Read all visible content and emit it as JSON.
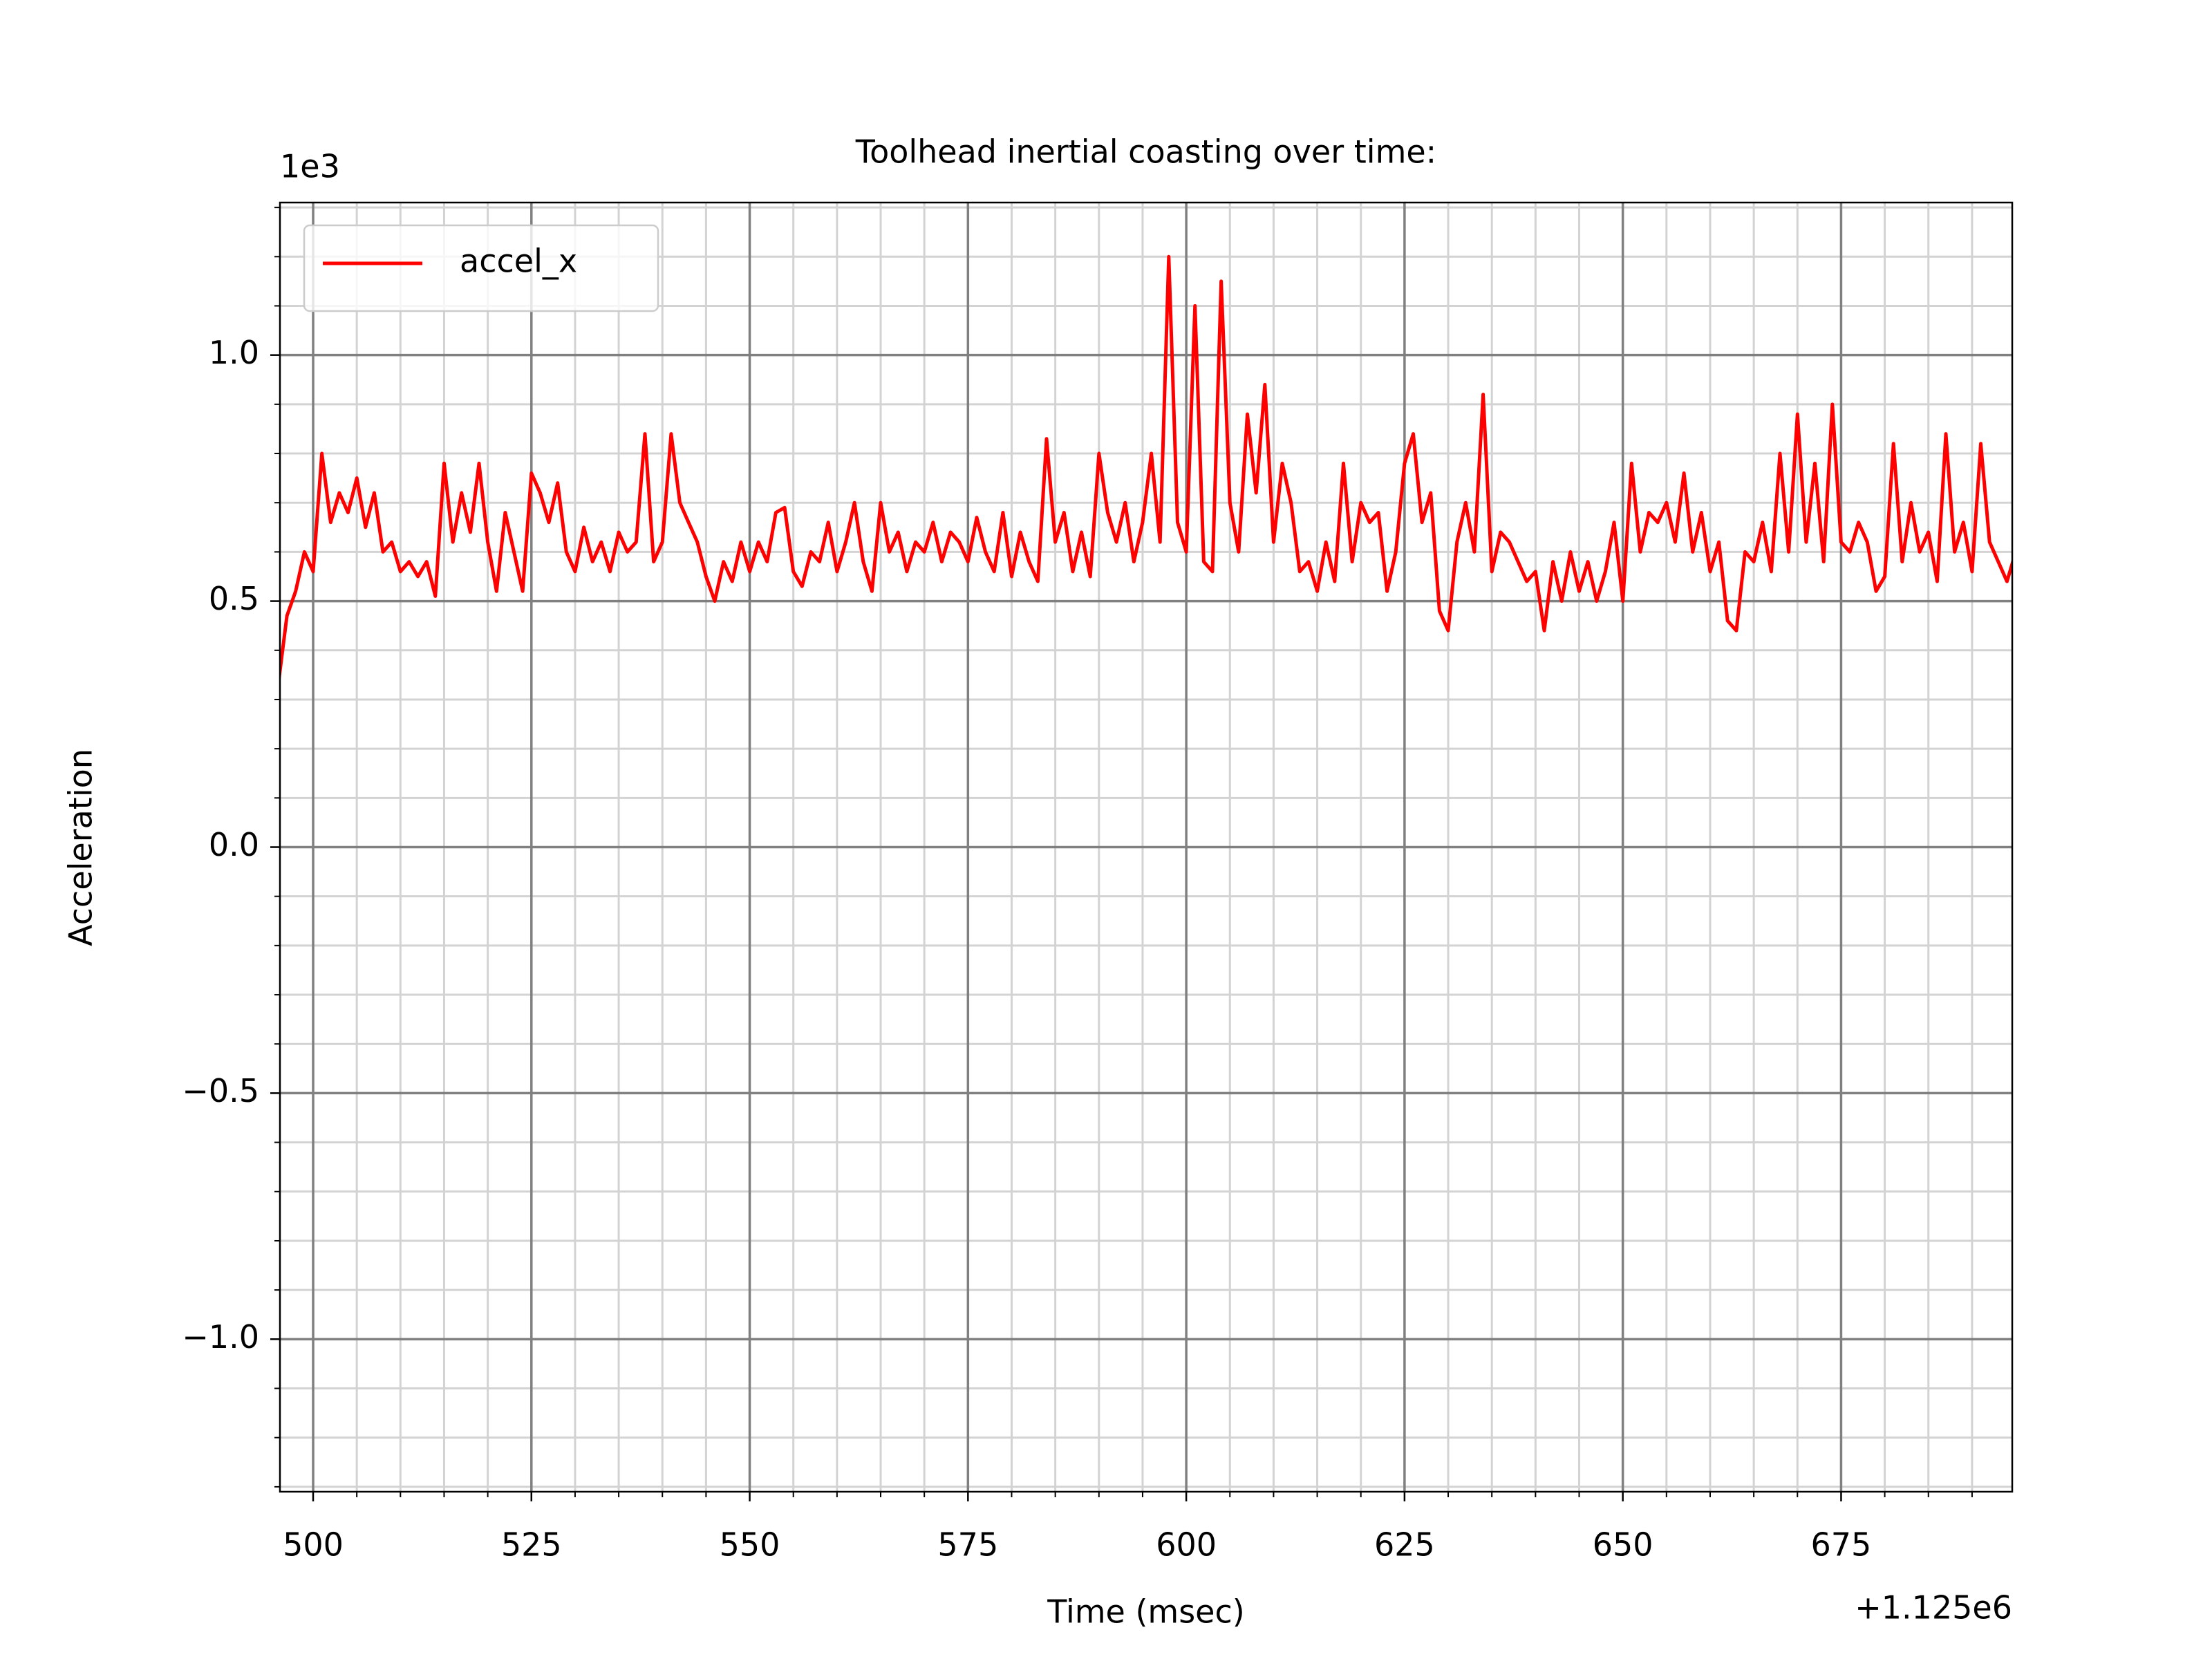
{
  "chart_data": {
    "type": "line",
    "title": "Toolhead inertial coasting over time:",
    "x_label": "Time (msec)",
    "y_label": "Acceleration",
    "x_offset_label": "+1.125e6",
    "y_offset_label": "1e3",
    "x": [
      496,
      497,
      498,
      499,
      500,
      501,
      502,
      503,
      504,
      505,
      506,
      507,
      508,
      509,
      510,
      511,
      512,
      513,
      514,
      515,
      516,
      517,
      518,
      519,
      520,
      521,
      522,
      523,
      524,
      525,
      526,
      527,
      528,
      529,
      530,
      531,
      532,
      533,
      534,
      535,
      536,
      537,
      538,
      539,
      540,
      541,
      542,
      543,
      544,
      545,
      546,
      547,
      548,
      549,
      550,
      551,
      552,
      553,
      554,
      555,
      556,
      557,
      558,
      559,
      560,
      561,
      562,
      563,
      564,
      565,
      566,
      567,
      568,
      569,
      570,
      571,
      572,
      573,
      574,
      575,
      576,
      577,
      578,
      579,
      580,
      581,
      582,
      583,
      584,
      585,
      586,
      587,
      588,
      589,
      590,
      591,
      592,
      593,
      594,
      595,
      596,
      597,
      598,
      599,
      600,
      601,
      602,
      603,
      604,
      605,
      606,
      607,
      608,
      609,
      610,
      611,
      612,
      613,
      614,
      615,
      616,
      617,
      618,
      619,
      620,
      621,
      622,
      623,
      624,
      625,
      626,
      627,
      628,
      629,
      630,
      631,
      632,
      633,
      634,
      635,
      636,
      637,
      638,
      639,
      640,
      641,
      642,
      643,
      644,
      645,
      646,
      647,
      648,
      649,
      650,
      651,
      652,
      653,
      654,
      655,
      656,
      657,
      658,
      659,
      660,
      661,
      662,
      663,
      664,
      665,
      666,
      667,
      668,
      669,
      670,
      671,
      672,
      673,
      674,
      675,
      676,
      677,
      678,
      679,
      680,
      681,
      682,
      683,
      684,
      685,
      686,
      687,
      688,
      689,
      690,
      691,
      692,
      693,
      694,
      695
    ],
    "series": [
      {
        "name": "accel_x",
        "color": "#ff0000",
        "values": [
          0.33,
          0.47,
          0.52,
          0.6,
          0.56,
          0.8,
          0.66,
          0.72,
          0.68,
          0.75,
          0.65,
          0.72,
          0.6,
          0.62,
          0.56,
          0.58,
          0.55,
          0.58,
          0.51,
          0.78,
          0.62,
          0.72,
          0.64,
          0.78,
          0.62,
          0.52,
          0.68,
          0.6,
          0.52,
          0.76,
          0.72,
          0.66,
          0.74,
          0.6,
          0.56,
          0.65,
          0.58,
          0.62,
          0.56,
          0.64,
          0.6,
          0.62,
          0.84,
          0.58,
          0.62,
          0.84,
          0.7,
          0.66,
          0.62,
          0.55,
          0.5,
          0.58,
          0.54,
          0.62,
          0.56,
          0.62,
          0.58,
          0.68,
          0.69,
          0.56,
          0.53,
          0.6,
          0.58,
          0.66,
          0.56,
          0.62,
          0.7,
          0.58,
          0.52,
          0.7,
          0.6,
          0.64,
          0.56,
          0.62,
          0.6,
          0.66,
          0.58,
          0.64,
          0.62,
          0.58,
          0.67,
          0.6,
          0.56,
          0.68,
          0.55,
          0.64,
          0.58,
          0.54,
          0.83,
          0.62,
          0.68,
          0.56,
          0.64,
          0.55,
          0.8,
          0.68,
          0.62,
          0.7,
          0.58,
          0.66,
          0.8,
          0.62,
          1.2,
          0.66,
          0.6,
          1.1,
          0.58,
          0.56,
          1.15,
          0.7,
          0.6,
          0.88,
          0.72,
          0.94,
          0.62,
          0.78,
          0.7,
          0.56,
          0.58,
          0.52,
          0.62,
          0.54,
          0.78,
          0.58,
          0.7,
          0.66,
          0.68,
          0.52,
          0.6,
          0.78,
          0.84,
          0.66,
          0.72,
          0.48,
          0.44,
          0.62,
          0.7,
          0.6,
          0.92,
          0.56,
          0.64,
          0.62,
          0.58,
          0.54,
          0.56,
          0.44,
          0.58,
          0.5,
          0.6,
          0.52,
          0.58,
          0.5,
          0.56,
          0.66,
          0.5,
          0.78,
          0.6,
          0.68,
          0.66,
          0.7,
          0.62,
          0.76,
          0.6,
          0.68,
          0.56,
          0.62,
          0.46,
          0.44,
          0.6,
          0.58,
          0.66,
          0.56,
          0.8,
          0.6,
          0.88,
          0.62,
          0.78,
          0.58,
          0.9,
          0.62,
          0.6,
          0.66,
          0.62,
          0.52,
          0.55,
          0.82,
          0.58,
          0.7,
          0.6,
          0.64,
          0.54,
          0.84,
          0.6,
          0.66,
          0.56,
          0.82,
          0.62,
          0.58,
          0.54,
          0.6
        ]
      }
    ],
    "xlim": [
      496.2,
      694.6
    ],
    "ylim": [
      -1.31,
      1.31
    ],
    "xticks": [
      500,
      525,
      550,
      575,
      600,
      625,
      650,
      675
    ],
    "xticks_minor": [
      505,
      510,
      515,
      520,
      530,
      535,
      540,
      545,
      555,
      560,
      565,
      570,
      580,
      585,
      590,
      595,
      605,
      610,
      615,
      620,
      630,
      635,
      640,
      645,
      655,
      660,
      665,
      670,
      680,
      685,
      690
    ],
    "yticks": [
      {
        "value": -1.0,
        "label": "−1.0"
      },
      {
        "value": -0.5,
        "label": "−0.5"
      },
      {
        "value": 0.0,
        "label": "0.0"
      },
      0.5,
      {
        "value": 1.0,
        "label": "1.0"
      }
    ],
    "yticks_minor": [
      -1.3,
      -1.2,
      -1.1,
      -0.9,
      -0.8,
      -0.7,
      -0.6,
      -0.4,
      -0.3,
      -0.2,
      -0.1,
      0.1,
      0.2,
      0.3,
      0.4,
      0.6,
      0.7,
      0.8,
      0.9,
      1.1,
      1.2,
      1.3
    ],
    "grid": true,
    "major_grid_color": "#808080",
    "minor_grid_color": "#d3d3d3",
    "legend": "upper left"
  }
}
